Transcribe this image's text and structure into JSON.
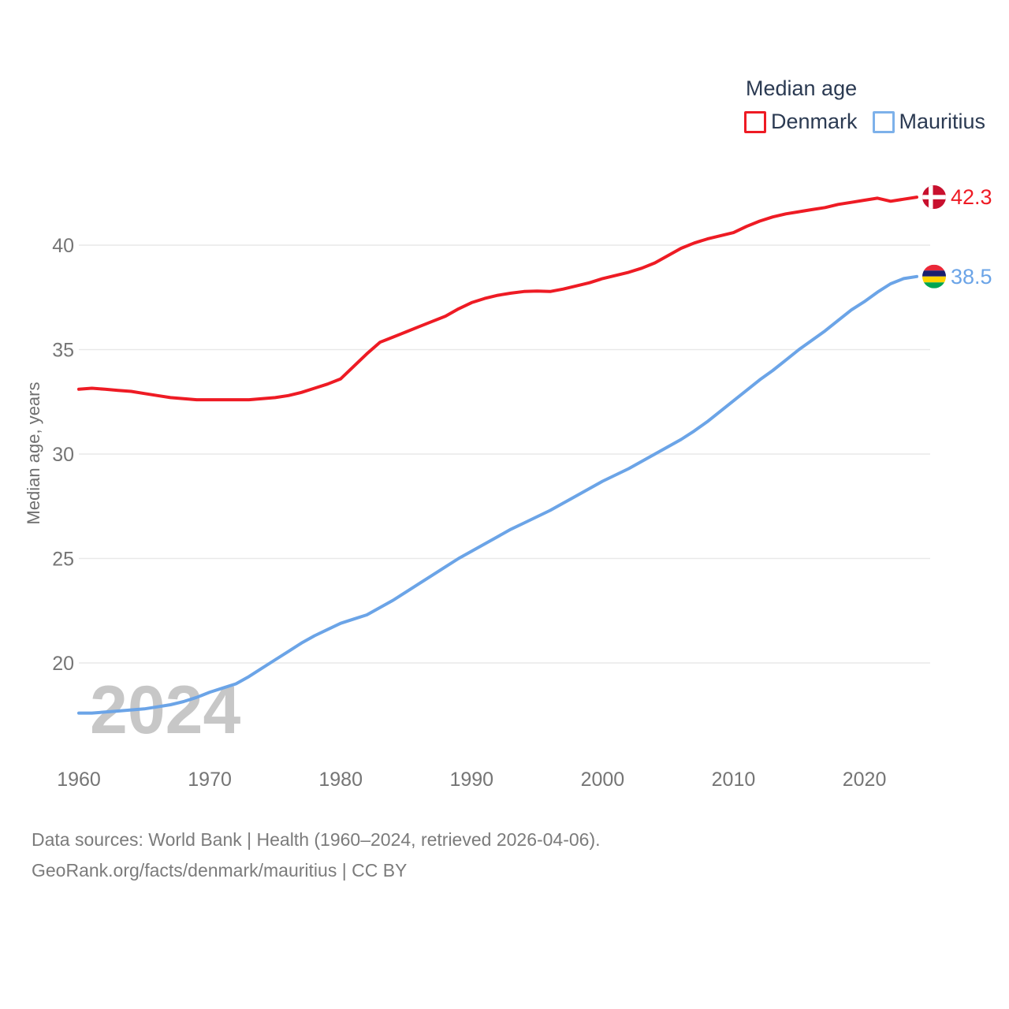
{
  "legend": {
    "title": "Median age",
    "items": [
      {
        "label": "Denmark",
        "color": "#ee1b24"
      },
      {
        "label": "Mauritius",
        "color": "#7db1ea"
      }
    ]
  },
  "watermark": "2024",
  "footer": {
    "line1": "Data sources: World Bank | Health (1960–2024, retrieved 2026-04-06).",
    "line2": "GeoRank.org/facts/denmark/mauritius | CC BY"
  },
  "colors": {
    "denmark_line": "#ee1b24",
    "mauritius_line": "#6ba4e7",
    "grid": "#e9e9e9",
    "tick_text": "#757575",
    "axis_title_text": "#6f6f6f",
    "watermark_text": "#c7c7c7",
    "legend_text": "#2b3a52"
  },
  "chart_data": {
    "type": "line",
    "title": "Median age",
    "xlabel": "",
    "ylabel": "Median age, years",
    "x_ticks": [
      1960,
      1970,
      1980,
      1990,
      2000,
      2010,
      2020
    ],
    "y_ticks": [
      20,
      25,
      30,
      35,
      40
    ],
    "x_range": [
      1960,
      2024
    ],
    "y_range": [
      17,
      43
    ],
    "grid": "horizontal-only",
    "legend_position": "top-right",
    "x_start": 1960,
    "x_step": 1,
    "series": [
      {
        "name": "Denmark",
        "color": "#ee1b24",
        "end_label": "42.3",
        "end_value": 42.3,
        "flag": {
          "type": "nordic-cross",
          "bg": "#c8102e",
          "cross": "#ffffff"
        },
        "values": [
          33.1,
          33.15,
          33.1,
          33.05,
          33.0,
          32.9,
          32.8,
          32.7,
          32.65,
          32.6,
          32.6,
          32.6,
          32.6,
          32.6,
          32.65,
          32.7,
          32.8,
          32.95,
          33.15,
          33.35,
          33.6,
          34.2,
          34.8,
          35.35,
          35.6,
          35.85,
          36.1,
          36.35,
          36.6,
          36.95,
          37.25,
          37.45,
          37.6,
          37.7,
          37.78,
          37.8,
          37.78,
          37.9,
          38.05,
          38.2,
          38.4,
          38.55,
          38.7,
          38.9,
          39.15,
          39.5,
          39.85,
          40.1,
          40.3,
          40.45,
          40.6,
          40.9,
          41.15,
          41.35,
          41.5,
          41.6,
          41.7,
          41.8,
          41.95,
          42.05,
          42.15,
          42.25,
          42.1,
          42.2,
          42.3
        ]
      },
      {
        "name": "Mauritius",
        "color": "#6ba4e7",
        "end_label": "38.5",
        "end_value": 38.5,
        "flag": {
          "type": "stripes",
          "stripes": [
            "#ea2839",
            "#1a206d",
            "#ffd500",
            "#00a551"
          ]
        },
        "values": [
          17.6,
          17.6,
          17.65,
          17.7,
          17.75,
          17.8,
          17.9,
          18.0,
          18.15,
          18.35,
          18.6,
          18.8,
          19.0,
          19.35,
          19.75,
          20.15,
          20.55,
          20.95,
          21.3,
          21.6,
          21.9,
          22.1,
          22.3,
          22.65,
          23.0,
          23.4,
          23.8,
          24.2,
          24.6,
          25.0,
          25.35,
          25.7,
          26.05,
          26.4,
          26.7,
          27.0,
          27.3,
          27.65,
          28.0,
          28.35,
          28.7,
          29.0,
          29.3,
          29.65,
          30.0,
          30.35,
          30.7,
          31.1,
          31.55,
          32.05,
          32.55,
          33.05,
          33.55,
          34.0,
          34.5,
          35.0,
          35.45,
          35.9,
          36.4,
          36.9,
          37.3,
          37.75,
          38.15,
          38.4,
          38.5
        ]
      }
    ]
  }
}
